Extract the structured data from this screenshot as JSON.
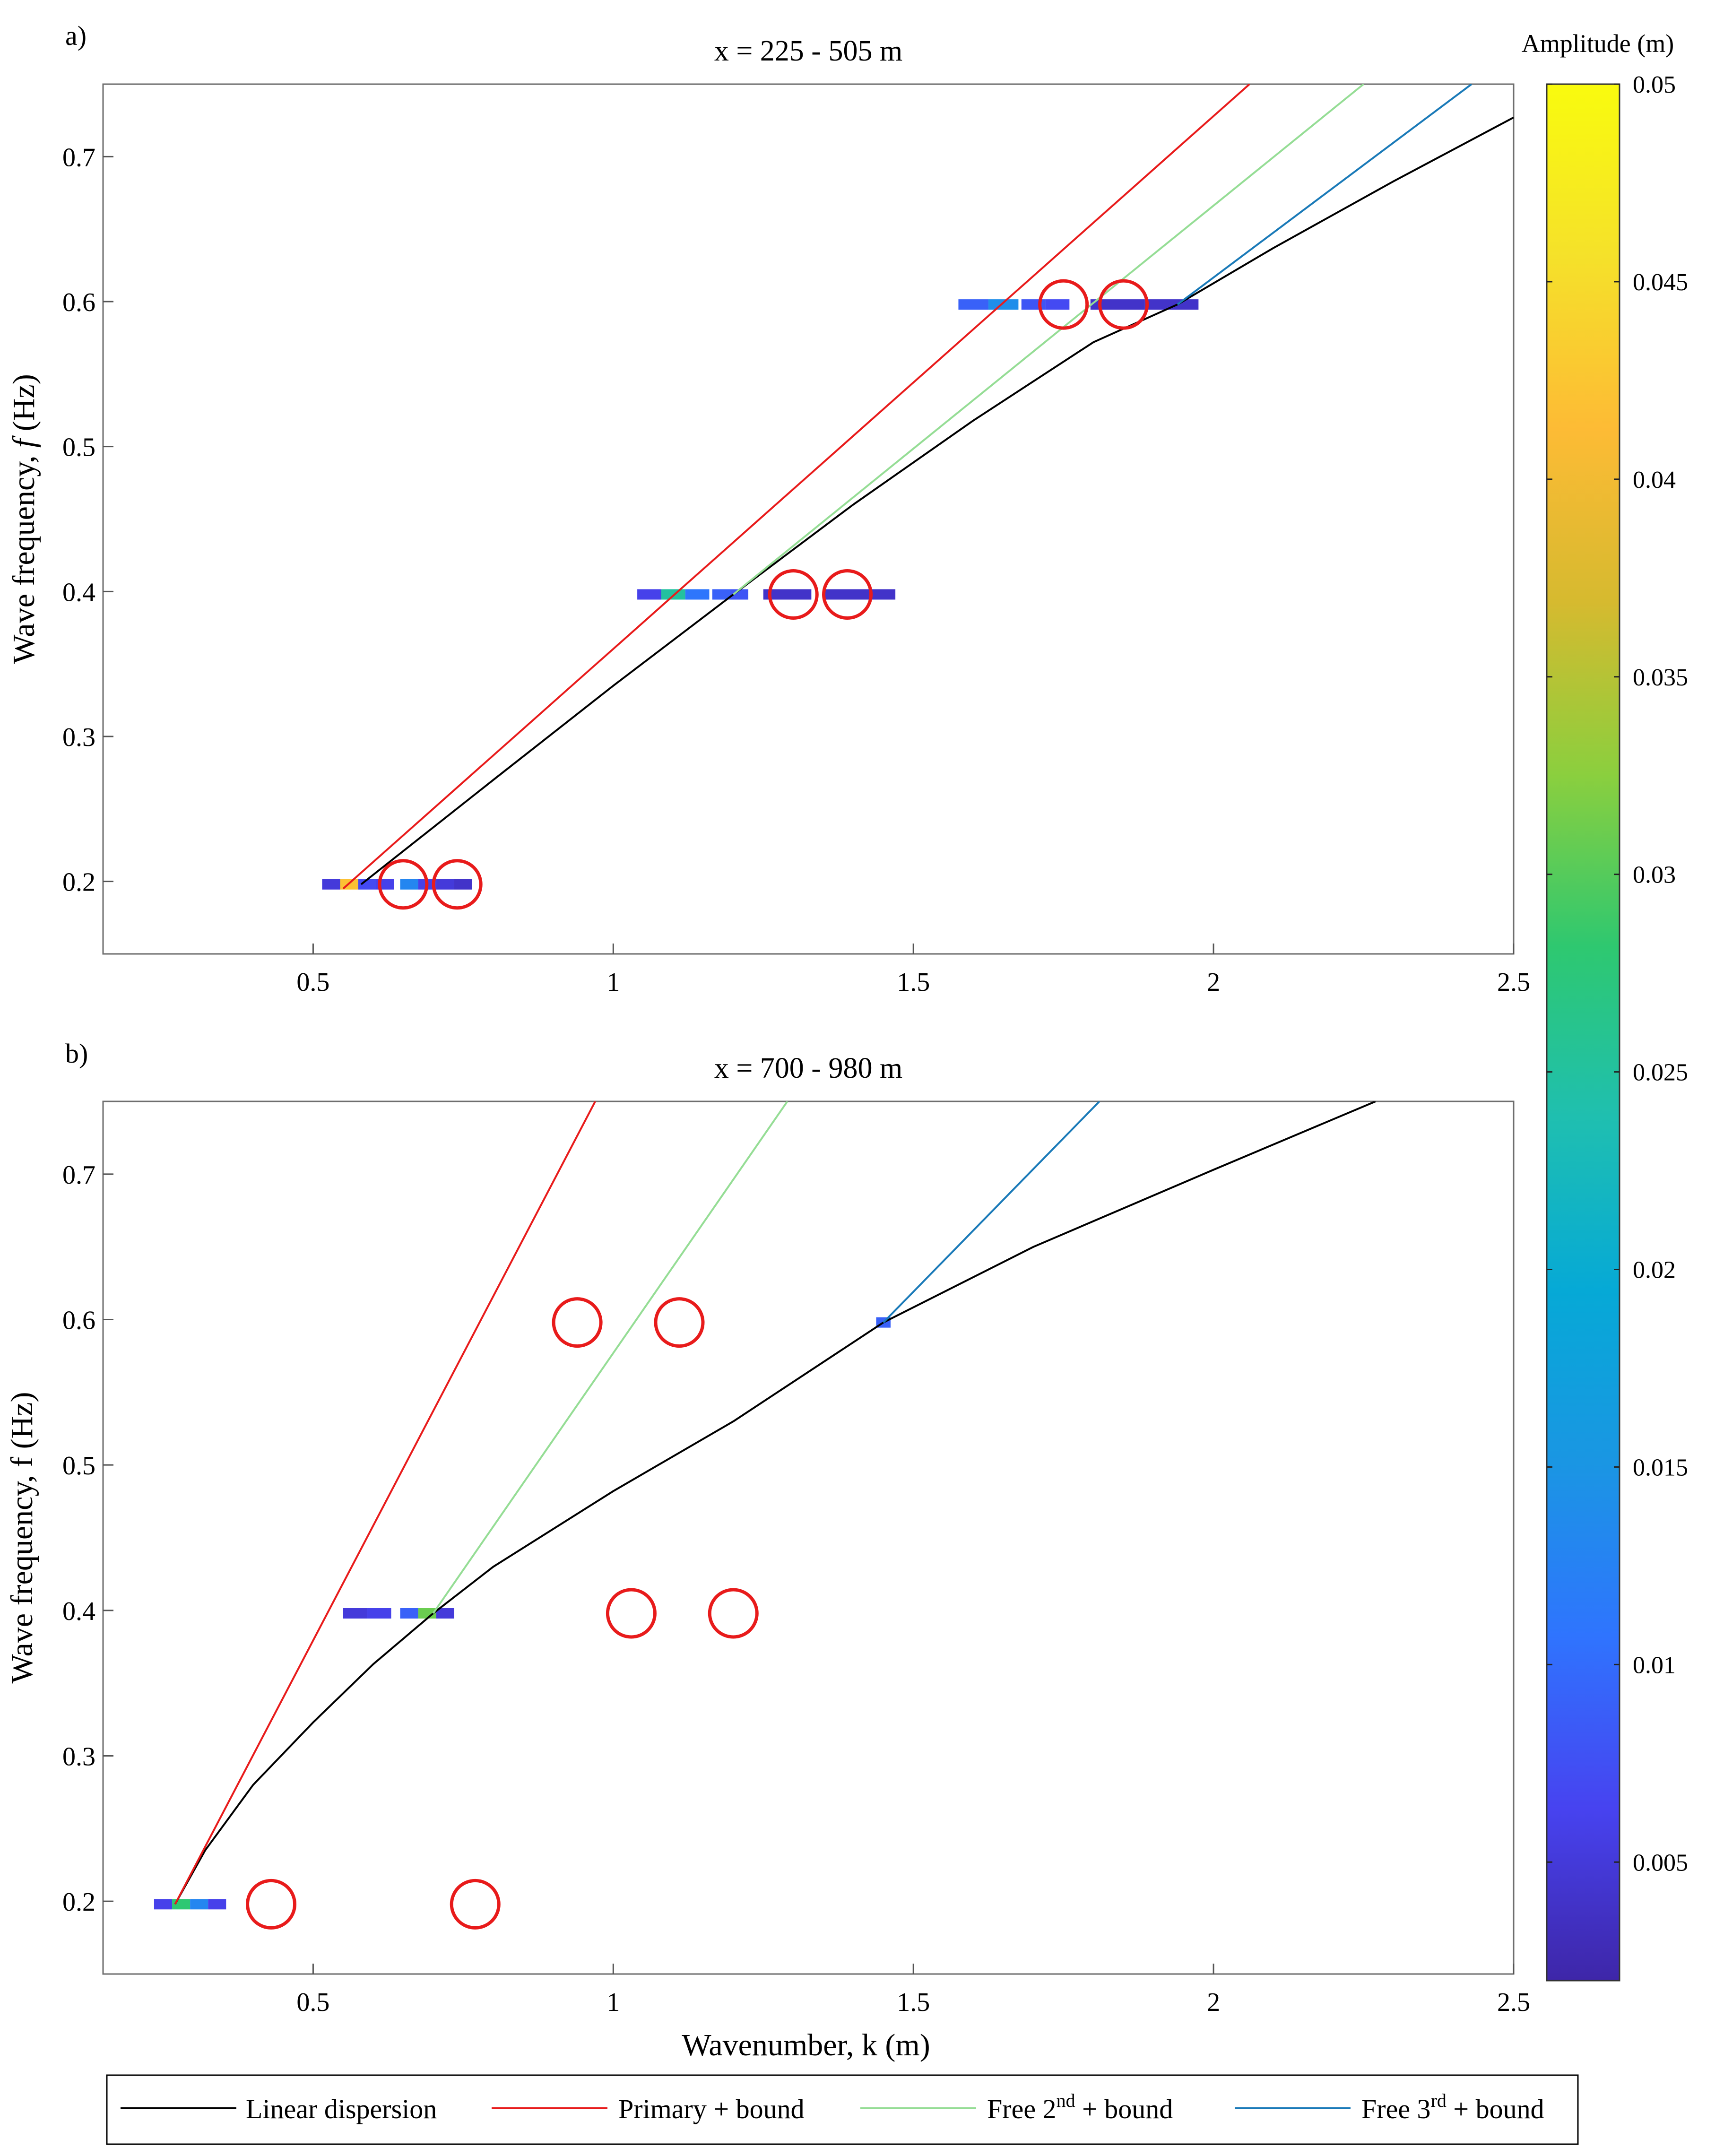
{
  "figure": {
    "colorbar": {
      "label": "Amplitude (m)",
      "range": [
        0.002,
        0.05
      ],
      "ticks": [
        0.005,
        0.01,
        0.015,
        0.02,
        0.025,
        0.03,
        0.035,
        0.04,
        0.045,
        0.05
      ],
      "tick_labels": [
        "0.005",
        "0.01",
        "0.015",
        "0.02",
        "0.025",
        "0.03",
        "0.035",
        "0.04",
        "0.045",
        "0.05"
      ],
      "colormap": [
        "#3e26a8",
        "#4743f0",
        "#2f74fe",
        "#1a96e3",
        "#06a9d6",
        "#1fbfb0",
        "#2ec870",
        "#8bcf3e",
        "#d6ba2f",
        "#fdbb35",
        "#f5e12a",
        "#f9fb0e"
      ]
    },
    "legend": {
      "entries": [
        {
          "label": "Linear dispersion",
          "color": "#000000"
        },
        {
          "label": "Primary + bound",
          "color": "#e81b1b"
        },
        {
          "label": "Free 2",
          "sup": "nd",
          "suffix": " + bound",
          "color": "#95dd95"
        },
        {
          "label": "Free 3",
          "sup": "rd",
          "suffix": " + bound",
          "color": "#1a7ab8"
        }
      ]
    },
    "circle_color": "#e81b1b"
  },
  "chart_data": [
    {
      "type": "line",
      "panel_label": "a)",
      "title": "x = 225 - 505 m",
      "xlabel": "",
      "ylabel_pre": "Wave frequency, ",
      "ylabel_var": "f",
      "ylabel_post": " (Hz)",
      "xlim": [
        0.15,
        2.5
      ],
      "ylim": [
        0.15,
        0.75
      ],
      "xticks": [
        0.5,
        1,
        1.5,
        2,
        2.5
      ],
      "xtick_labels": [
        "0.5",
        "1",
        "1.5",
        "2",
        "2.5"
      ],
      "yticks": [
        0.2,
        0.3,
        0.4,
        0.5,
        0.6,
        0.7
      ],
      "ytick_labels": [
        "0.2",
        "0.3",
        "0.4",
        "0.5",
        "0.6",
        "0.7"
      ],
      "series": [
        {
          "name": "Linear dispersion",
          "color": "#000000",
          "x": [
            0.58,
            0.8,
            1.0,
            1.2,
            1.4,
            1.6,
            1.8,
            1.94,
            2.1,
            2.3,
            2.5
          ],
          "y": [
            0.198,
            0.27,
            0.335,
            0.398,
            0.46,
            0.518,
            0.572,
            0.598,
            0.637,
            0.683,
            0.727
          ]
        },
        {
          "name": "Primary + bound",
          "color": "#e81b1b",
          "x": [
            0.55,
            2.06
          ],
          "y": [
            0.195,
            0.75
          ]
        },
        {
          "name": "Free 2nd + bound",
          "color": "#95dd95",
          "x": [
            1.2,
            2.25
          ],
          "y": [
            0.398,
            0.75
          ]
        },
        {
          "name": "Free 3rd + bound",
          "color": "#1a7ab8",
          "x": [
            1.94,
            2.43
          ],
          "y": [
            0.598,
            0.75
          ]
        }
      ],
      "spectral_bins": [
        {
          "f": 0.198,
          "k": [
            0.53,
            0.56,
            0.59,
            0.62,
            0.66,
            0.69,
            0.72,
            0.75
          ],
          "amplitude": [
            0.005,
            0.042,
            0.007,
            0.006,
            0.013,
            0.006,
            0.005,
            0.004
          ]
        },
        {
          "f": 0.398,
          "k": [
            1.06,
            1.1,
            1.14,
            1.18,
            1.21,
            1.29,
            1.41
          ],
          "amplitude": [
            0.006,
            0.025,
            0.011,
            0.009,
            0.008,
            0.004,
            0.004
          ]
        },
        {
          "f": 0.598,
          "k": [
            1.6,
            1.65,
            1.7,
            1.74,
            1.84,
            1.93
          ],
          "amplitude": [
            0.009,
            0.014,
            0.008,
            0.007,
            0.004,
            0.004
          ]
        }
      ],
      "circles": [
        {
          "k": 0.65,
          "f": 0.198
        },
        {
          "k": 0.74,
          "f": 0.198
        },
        {
          "k": 1.3,
          "f": 0.398
        },
        {
          "k": 1.39,
          "f": 0.398
        },
        {
          "k": 1.75,
          "f": 0.598
        },
        {
          "k": 1.85,
          "f": 0.598
        }
      ]
    },
    {
      "type": "line",
      "panel_label": "b)",
      "title": "x = 700 - 980 m",
      "xlabel": "Wavenumber, k (m)",
      "ylabel_pre": "Wave frequency, f (Hz)",
      "ylabel_var": "",
      "ylabel_post": "",
      "xlim": [
        0.15,
        2.5
      ],
      "ylim": [
        0.15,
        0.75
      ],
      "xticks": [
        0.5,
        1,
        1.5,
        2,
        2.5
      ],
      "xtick_labels": [
        "0.5",
        "1",
        "1.5",
        "2",
        "2.5"
      ],
      "yticks": [
        0.2,
        0.3,
        0.4,
        0.5,
        0.6,
        0.7
      ],
      "ytick_labels": [
        "0.2",
        "0.3",
        "0.4",
        "0.5",
        "0.6",
        "0.7"
      ],
      "series": [
        {
          "name": "Linear dispersion",
          "color": "#000000",
          "x": [
            0.27,
            0.32,
            0.4,
            0.5,
            0.6,
            0.7,
            0.8,
            1.0,
            1.2,
            1.45,
            1.7,
            2.0,
            2.27
          ],
          "y": [
            0.198,
            0.235,
            0.28,
            0.323,
            0.363,
            0.398,
            0.43,
            0.482,
            0.53,
            0.598,
            0.65,
            0.703,
            0.75
          ]
        },
        {
          "name": "Primary + bound",
          "color": "#e81b1b",
          "x": [
            0.27,
            0.97
          ],
          "y": [
            0.198,
            0.75
          ]
        },
        {
          "name": "Free 2nd + bound",
          "color": "#95dd95",
          "x": [
            0.7,
            1.29
          ],
          "y": [
            0.398,
            0.75
          ]
        },
        {
          "name": "Free 3rd + bound",
          "color": "#1a7ab8",
          "x": [
            1.45,
            1.81
          ],
          "y": [
            0.598,
            0.75
          ]
        }
      ],
      "spectral_bins": [
        {
          "f": 0.198,
          "k": [
            0.25,
            0.28,
            0.31,
            0.34
          ],
          "amplitude": [
            0.006,
            0.028,
            0.013,
            0.006
          ]
        },
        {
          "f": 0.398,
          "k": [
            0.57,
            0.61,
            0.66,
            0.69,
            0.72
          ],
          "amplitude": [
            0.005,
            0.006,
            0.009,
            0.031,
            0.005
          ]
        },
        {
          "f": 0.598,
          "k": [
            1.45
          ],
          "amplitude": [
            0.009
          ]
        }
      ],
      "circles": [
        {
          "k": 0.43,
          "f": 0.198
        },
        {
          "k": 0.77,
          "f": 0.198
        },
        {
          "k": 1.03,
          "f": 0.398
        },
        {
          "k": 1.2,
          "f": 0.398
        },
        {
          "k": 0.94,
          "f": 0.598
        },
        {
          "k": 1.11,
          "f": 0.598
        }
      ]
    }
  ]
}
